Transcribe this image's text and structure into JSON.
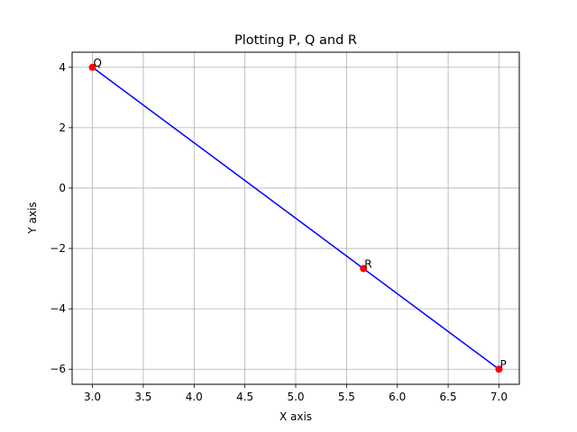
{
  "chart_data": {
    "type": "line",
    "title": "Plotting P, Q and R",
    "xlabel": "X axis",
    "ylabel": "Y axis",
    "xlim": [
      2.8,
      7.2
    ],
    "ylim": [
      -6.5,
      4.5
    ],
    "xticks": [
      3.0,
      3.5,
      4.0,
      4.5,
      5.0,
      5.5,
      6.0,
      6.5,
      7.0
    ],
    "xtick_labels": [
      "3.0",
      "3.5",
      "4.0",
      "4.5",
      "5.0",
      "5.5",
      "6.0",
      "6.5",
      "7.0"
    ],
    "yticks": [
      -6,
      -4,
      -2,
      0,
      2,
      4
    ],
    "ytick_labels": [
      "−6",
      "−4",
      "−2",
      "0",
      "2",
      "4"
    ],
    "grid": true,
    "series": [
      {
        "color": "#0000ff",
        "x": [
          7.0,
          3.0,
          5.667
        ],
        "y": [
          -6.0,
          4.0,
          -2.667
        ]
      }
    ],
    "points": [
      {
        "label": "P",
        "x": 7.0,
        "y": -6.0
      },
      {
        "label": "Q",
        "x": 3.0,
        "y": 4.0
      },
      {
        "label": "R",
        "x": 5.667,
        "y": -2.667
      }
    ],
    "point_color": "#ff0000"
  }
}
